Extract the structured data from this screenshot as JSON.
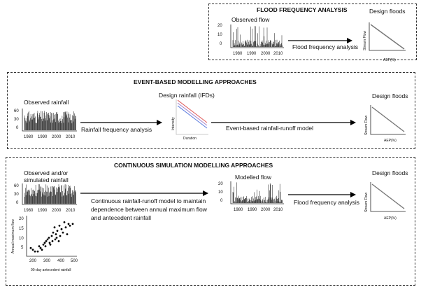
{
  "panels": {
    "flood": {
      "title": "FLOOD FREQUENCY ANALYSIS",
      "observed_flow": "Observed flow",
      "arrow_label": "Flood frequency analysis",
      "design_floods": "Design floods"
    },
    "event": {
      "title": "EVENT-BASED MODELLING APPROACHES",
      "observed_rainfall": "Observed rainfall",
      "arrow1_label": "Rainfall frequency analysis",
      "design_rainfall": "Design rainfall (IFDs)",
      "arrow2_label": "Event-based rainfall-runoff model",
      "design_floods": "Design floods"
    },
    "continuous": {
      "title": "CONTINUOUS SIMULATION MODELLING APPROACHES",
      "observed_rainfall_line1": "Observed and/or",
      "observed_rainfall_line2": "simulated rainfall",
      "arrow1_line1": "Continuous rainfall-runoff model to maintain",
      "arrow1_line2": "dependence between annual maximum flow",
      "arrow1_line3": "and antecedent rainfall",
      "modelled_flow": "Modelled flow",
      "arrow2_label": "Flood frequency analysis",
      "design_floods": "Design floods"
    }
  },
  "axes": {
    "stream_flow": "Stream Flow",
    "aep": "AEP(%)",
    "intensity": "Intensity",
    "duration": "Duration",
    "annual_max_flow": "Annual maximum flow",
    "antecedent_rainfall": "90-day antecedent rainfall"
  },
  "ticks": {
    "flow_y": [
      "0",
      "10",
      "20"
    ],
    "rain_y": [
      "0",
      "30",
      "60"
    ],
    "years": [
      "1980",
      "1990",
      "2000",
      "2010"
    ],
    "scatter_y": [
      "5",
      "10",
      "15",
      "20"
    ],
    "scatter_x": [
      "200",
      "300",
      "400",
      "500"
    ]
  },
  "chart_data": {
    "type": "scatter",
    "xlabel": "90-day antecedent rainfall",
    "ylabel": "Annual maximum flow",
    "xlim": [
      180,
      520
    ],
    "ylim": [
      0,
      22
    ],
    "x": [
      200,
      215,
      230,
      250,
      260,
      270,
      280,
      290,
      300,
      305,
      310,
      320,
      330,
      335,
      340,
      350,
      355,
      360,
      370,
      375,
      380,
      385,
      390,
      400,
      405,
      410,
      420,
      430,
      440,
      450,
      460,
      470,
      480,
      500
    ],
    "y": [
      4,
      3,
      2,
      2,
      5,
      4,
      3,
      6,
      7,
      5,
      8,
      9,
      10,
      7,
      6,
      11,
      8,
      13,
      16,
      9,
      12,
      10,
      14,
      8,
      17,
      11,
      15,
      13,
      19,
      16,
      12,
      18,
      17,
      18
    ]
  },
  "colors": {
    "ink": "#111111",
    "ifd_red": "#e06060",
    "ifd_blue": "#6080e0",
    "ifd_mid": "#aa88cc"
  }
}
